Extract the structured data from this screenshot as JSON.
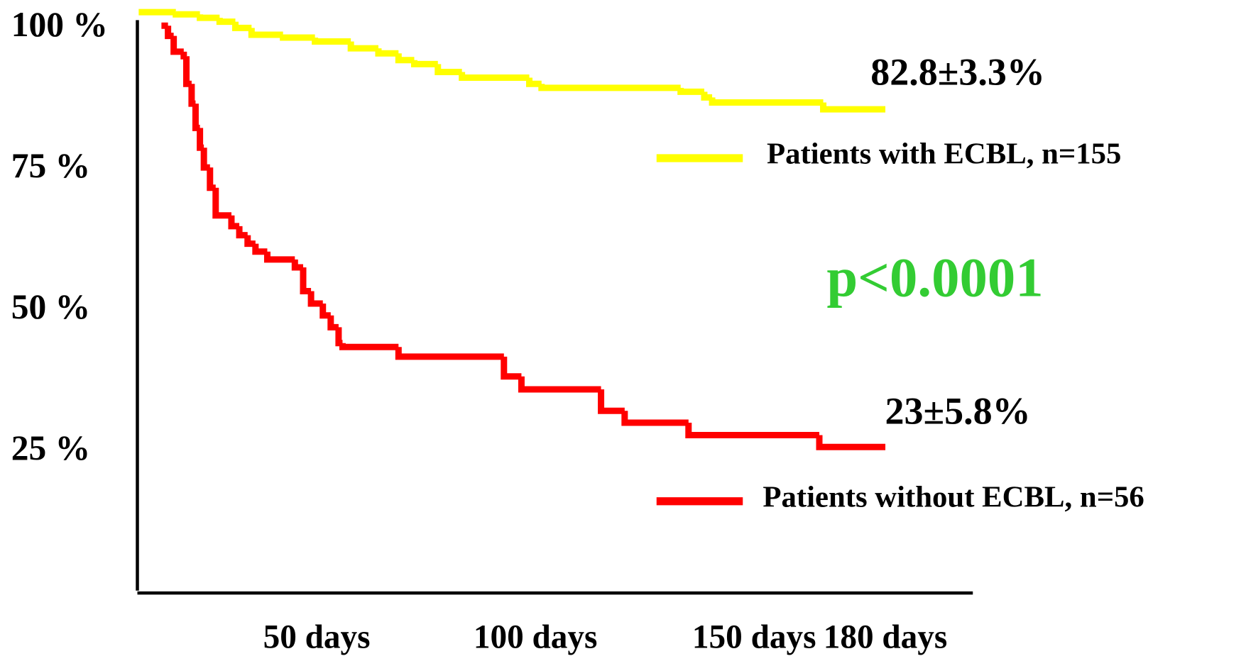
{
  "chart_data": {
    "type": "step",
    "series": [
      {
        "name": "Patients with ECBL, n=155",
        "color": "#ffff00",
        "x": [
          9.3,
          17.8,
          23.3,
          27.8,
          31.4,
          35.1,
          42.3,
          49.6,
          57.8,
          64.1,
          68.7,
          72.3,
          77.7,
          83.2,
          98.6,
          101.4,
          133.2,
          138.6,
          140.4,
          165.8,
          180
        ],
        "values": [
          100,
          99.6,
          99.0,
          98.3,
          97.2,
          96.0,
          95.5,
          94.8,
          93.6,
          92.7,
          91.5,
          90.8,
          89.4,
          88.4,
          87.3,
          86.6,
          85.9,
          84.9,
          84.0,
          82.8,
          82.8
        ]
      },
      {
        "name": "Patients without ECBL, n=56",
        "color": "#ff0000",
        "x": [
          14.5,
          16.0,
          17.3,
          19.6,
          20.2,
          21.4,
          22.3,
          23.3,
          24.2,
          25.6,
          26.9,
          30.5,
          32.3,
          34.2,
          36.0,
          38.7,
          45.0,
          46.9,
          48.7,
          51.4,
          53.2,
          55.0,
          55.9,
          68.7,
          92.8,
          96.8,
          115.0,
          120.4,
          135.0,
          164.9,
          180
        ],
        "values": [
          97.6,
          95.8,
          93.0,
          92.2,
          87.3,
          83.8,
          79.5,
          76.0,
          72.5,
          68.9,
          64.0,
          62.1,
          60.5,
          59.0,
          57.6,
          56.2,
          54.8,
          50.6,
          48.4,
          46.3,
          44.2,
          41.4,
          40.7,
          39.0,
          35.5,
          33.2,
          29.4,
          27.3,
          25.1,
          23.0,
          23.0
        ]
      }
    ],
    "annotations": [
      "82.8±3.3%",
      "23±5.8%",
      "p<0.0001"
    ],
    "xlim": [
      9,
      200
    ],
    "xticks": [
      {
        "value": 50,
        "label": "50 days"
      },
      {
        "value": 100,
        "label": "100 days"
      },
      {
        "value": 150,
        "label": "150 days"
      },
      {
        "value": 180,
        "label": "180 days"
      }
    ],
    "ylim": [
      -3,
      100
    ],
    "yticks": [
      {
        "value": 100,
        "label": "100 %"
      },
      {
        "value": 75,
        "label": "75 %"
      },
      {
        "value": 50,
        "label": "50 %"
      },
      {
        "value": 25,
        "label": "25 %"
      }
    ]
  }
}
